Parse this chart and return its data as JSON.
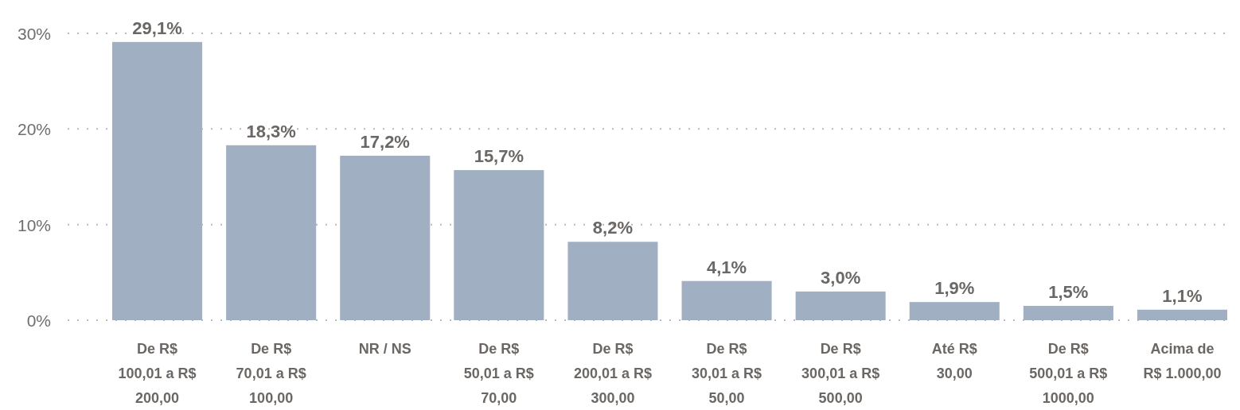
{
  "chart_data": {
    "type": "bar",
    "categories": [
      "De R$ 100,01 a R$ 200,00",
      "De R$ 70,01 a R$ 100,00",
      "NR / NS",
      "De R$ 50,01 a R$ 70,00",
      "De R$ 200,01 a R$ 300,00",
      "De R$ 30,01 a R$ 50,00",
      "De R$ 300,01 a R$ 500,00",
      "Até R$ 30,00",
      "De R$ 500,01 a R$ 1000,00",
      "Acima de R$ 1.000,00"
    ],
    "values": [
      29.1,
      18.3,
      17.2,
      15.7,
      8.2,
      4.1,
      3.0,
      1.9,
      1.5,
      1.1
    ],
    "value_labels": [
      "29,1%",
      "18,3%",
      "17,2%",
      "15,7%",
      "8,2%",
      "4,1%",
      "3,0%",
      "1,9%",
      "1,5%",
      "1,1%"
    ],
    "color": "#a0afc1",
    "ylim": [
      0,
      30
    ],
    "yticks": [
      {
        "value": 0,
        "label": "0%"
      },
      {
        "value": 10,
        "label": "10%"
      },
      {
        "value": 20,
        "label": "20%"
      },
      {
        "value": 30,
        "label": "30%"
      }
    ],
    "grid": "y"
  }
}
